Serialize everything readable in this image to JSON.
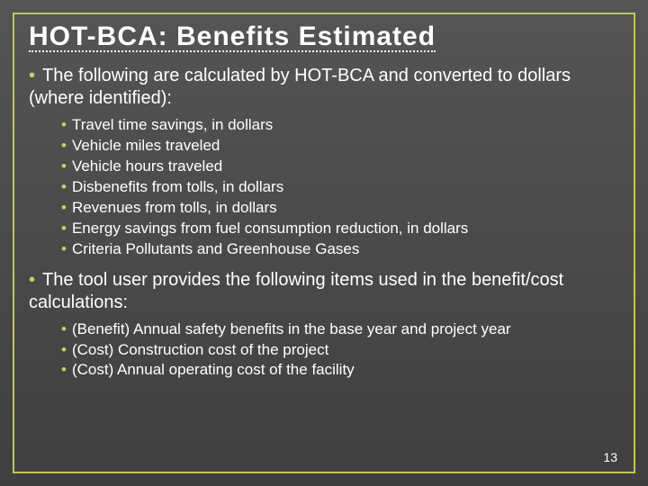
{
  "title": "HOT-BCA: Benefits Estimated",
  "lead1": "The following are calculated by HOT-BCA and converted to dollars (where identified):",
  "list1": {
    "i0": "Travel time savings, in dollars",
    "i1": "Vehicle miles traveled",
    "i2": "Vehicle hours traveled",
    "i3": "Disbenefits from tolls, in dollars",
    "i4": "Revenues from tolls, in dollars",
    "i5": "Energy savings from fuel consumption reduction, in dollars",
    "i6": "Criteria Pollutants and Greenhouse Gases"
  },
  "lead2": "The tool user provides the following items used in the benefit/cost calculations:",
  "list2": {
    "i0": "(Benefit) Annual safety benefits in the base year and project year",
    "i1": "(Cost) Construction cost of the project",
    "i2": "(Cost) Annual operating cost of the facility"
  },
  "pageNumber": "13",
  "colors": {
    "accent": "#c5c749",
    "bullet": "#d0d24a",
    "text": "#ffffff",
    "bgTop": "#555555",
    "bgBottom": "#3f3f3f"
  }
}
